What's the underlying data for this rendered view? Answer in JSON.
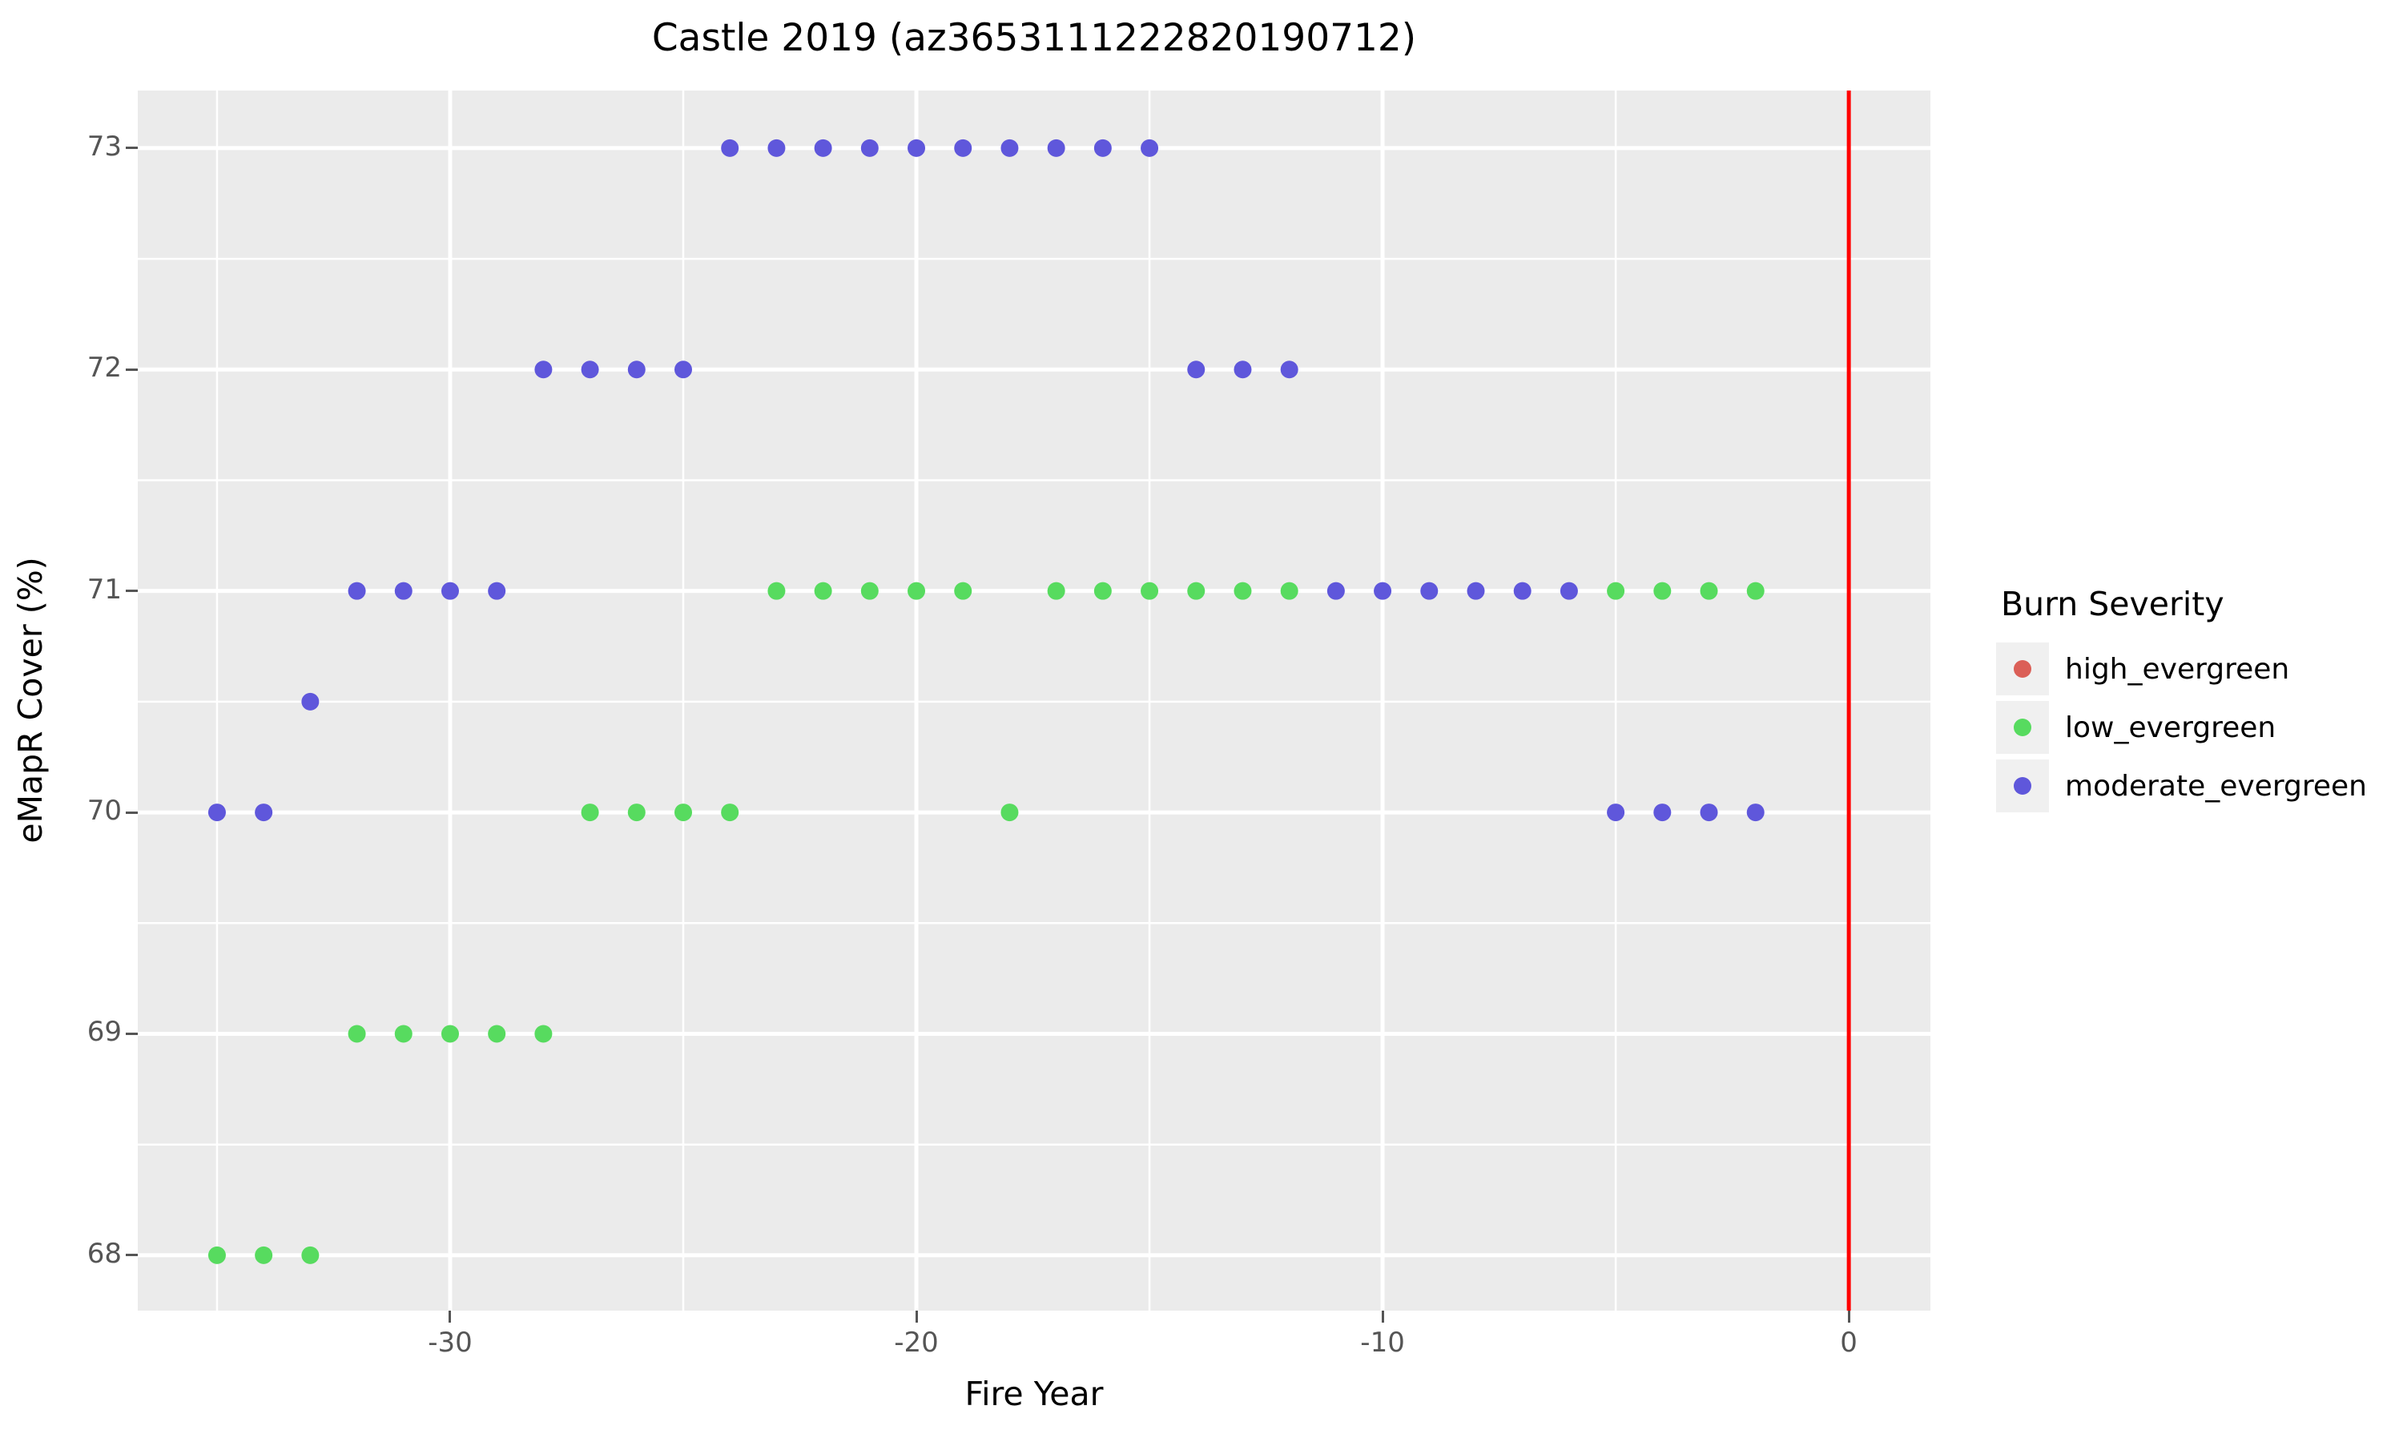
{
  "title": "Castle 2019 (az3653111222820190712)",
  "chart_data": {
    "type": "scatter",
    "title": "Castle 2019 (az3653111222820190712)",
    "xlabel": "Fire Year",
    "ylabel": "eMapR Cover (%)",
    "xlim": [
      -36.7,
      1.75
    ],
    "ylim": [
      67.75,
      73.26
    ],
    "x_major_ticks": [
      -30,
      -20,
      -10,
      0
    ],
    "x_minor_ticks": [
      -35,
      -25,
      -15,
      -5
    ],
    "y_major_ticks": [
      68,
      69,
      70,
      71,
      72,
      73
    ],
    "y_minor_ticks": [
      68.5,
      69.5,
      70.5,
      71.5,
      72.5
    ],
    "grid": true,
    "panel_bg": "#EBEBEB",
    "grid_color": "#FFFFFF",
    "tick_color": "#555555",
    "vline": {
      "x": 0,
      "color": "#FF0000"
    },
    "legend": {
      "title": "Burn Severity",
      "position": "right"
    },
    "series": [
      {
        "name": "high_evergreen",
        "color": "#DB5F57",
        "points": []
      },
      {
        "name": "low_evergreen",
        "color": "#57DB5F",
        "points": [
          [
            -23,
            71
          ],
          [
            -22,
            71
          ],
          [
            -21,
            71
          ],
          [
            -20,
            71
          ],
          [
            -19,
            71
          ],
          [
            -17,
            71
          ],
          [
            -16,
            71
          ],
          [
            -15,
            71
          ],
          [
            -14,
            71
          ],
          [
            -13,
            71
          ],
          [
            -12,
            71
          ],
          [
            -5,
            71
          ],
          [
            -4,
            71
          ],
          [
            -3,
            71
          ],
          [
            -2,
            71
          ],
          [
            -27,
            70
          ],
          [
            -26,
            70
          ],
          [
            -25,
            70
          ],
          [
            -24,
            70
          ],
          [
            -18,
            70
          ],
          [
            -32,
            69
          ],
          [
            -31,
            69
          ],
          [
            -30,
            69
          ],
          [
            -29,
            69
          ],
          [
            -28,
            69
          ],
          [
            -35,
            68
          ],
          [
            -34,
            68
          ],
          [
            -33,
            68
          ]
        ]
      },
      {
        "name": "moderate_evergreen",
        "color": "#5F57DB",
        "points": [
          [
            -24,
            73
          ],
          [
            -23,
            73
          ],
          [
            -22,
            73
          ],
          [
            -21,
            73
          ],
          [
            -20,
            73
          ],
          [
            -19,
            73
          ],
          [
            -18,
            73
          ],
          [
            -17,
            73
          ],
          [
            -16,
            73
          ],
          [
            -15,
            73
          ],
          [
            -28,
            72
          ],
          [
            -27,
            72
          ],
          [
            -26,
            72
          ],
          [
            -25,
            72
          ],
          [
            -14,
            72
          ],
          [
            -13,
            72
          ],
          [
            -12,
            72
          ],
          [
            -32,
            71
          ],
          [
            -31,
            71
          ],
          [
            -30,
            71
          ],
          [
            -29,
            71
          ],
          [
            -11,
            71
          ],
          [
            -10,
            71
          ],
          [
            -9,
            71
          ],
          [
            -8,
            71
          ],
          [
            -7,
            71
          ],
          [
            -6,
            71
          ],
          [
            -33,
            70.5
          ],
          [
            -35,
            70
          ],
          [
            -34,
            70
          ],
          [
            -5,
            70
          ],
          [
            -4,
            70
          ],
          [
            -3,
            70
          ],
          [
            -2,
            70
          ]
        ]
      }
    ]
  }
}
